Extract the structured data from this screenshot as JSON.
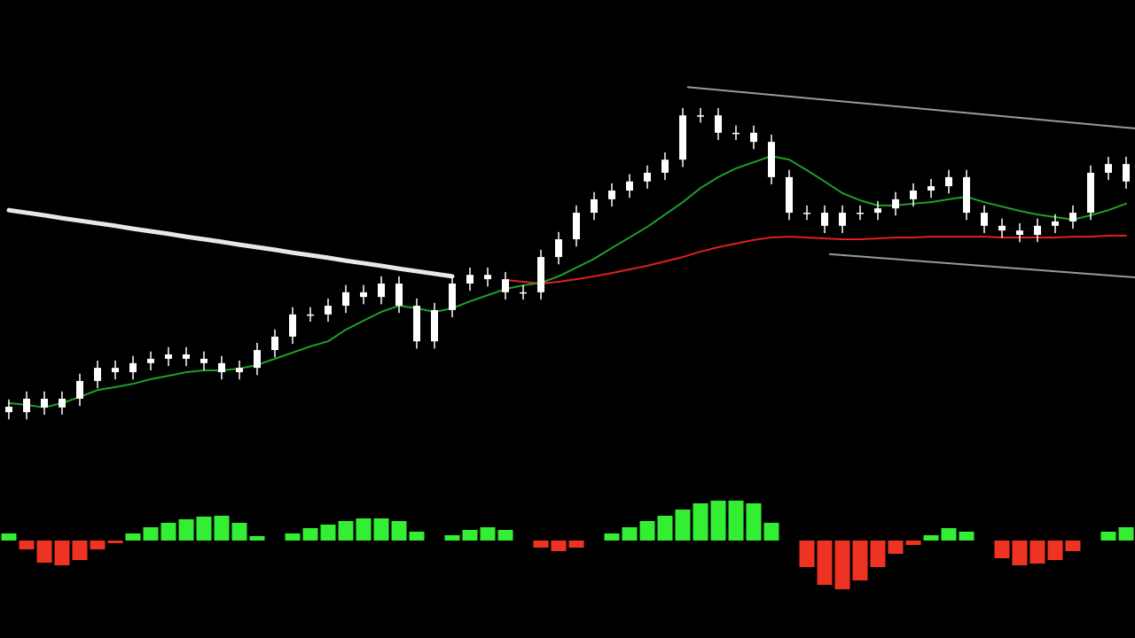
{
  "chart_data": [
    {
      "type": "candlestick",
      "color": "#ffffff",
      "x": [
        0,
        1,
        2,
        3,
        4,
        5,
        6,
        7,
        8,
        9,
        10,
        11,
        12,
        13,
        14,
        15,
        16,
        17,
        18,
        19,
        20,
        21,
        22,
        23,
        24,
        25,
        26,
        27,
        28,
        29,
        30,
        31,
        32,
        33,
        34,
        35,
        36,
        37,
        38,
        39,
        40,
        41,
        42,
        43,
        44,
        45,
        46,
        47,
        48,
        49,
        50,
        51,
        52,
        53,
        54,
        55,
        56,
        57,
        58,
        59,
        60,
        61,
        62,
        63
      ],
      "open": [
        10.0,
        8.5,
        12.2,
        9.8,
        12.2,
        17.1,
        20.7,
        19.5,
        22.0,
        23.2,
        24.4,
        23.2,
        22.0,
        19.5,
        20.7,
        25.6,
        29.3,
        35.4,
        35.4,
        37.8,
        41.5,
        40.2,
        43.9,
        37.8,
        28.0,
        36.6,
        43.9,
        46.3,
        45.1,
        41.5,
        41.5,
        51.2,
        56.1,
        63.4,
        67.1,
        69.5,
        72.0,
        74.4,
        78.0,
        90.2,
        90.2,
        85.4,
        85.4,
        82.9,
        73.2,
        63.4,
        63.4,
        59.8,
        63.4,
        63.4,
        64.6,
        67.1,
        69.5,
        70.7,
        73.2,
        63.4,
        59.8,
        58.5,
        57.3,
        59.8,
        61.0,
        63.4,
        74.4,
        76.8
      ],
      "high": [
        12.0,
        14.2,
        14.2,
        14.2,
        19.1,
        22.7,
        22.7,
        24.0,
        25.2,
        26.4,
        26.4,
        25.2,
        24.0,
        22.7,
        27.6,
        31.3,
        37.4,
        37.4,
        39.8,
        43.5,
        43.5,
        45.9,
        45.9,
        39.8,
        38.6,
        45.9,
        48.3,
        48.3,
        47.1,
        43.5,
        53.2,
        58.1,
        65.4,
        69.1,
        71.5,
        74.0,
        76.4,
        80.0,
        92.2,
        92.2,
        92.2,
        87.4,
        87.4,
        84.9,
        75.2,
        65.4,
        65.4,
        65.4,
        65.4,
        66.6,
        69.1,
        71.5,
        72.7,
        75.2,
        75.2,
        65.4,
        61.8,
        60.5,
        61.8,
        63.0,
        65.4,
        76.4,
        78.8,
        78.8
      ],
      "low": [
        6.5,
        6.5,
        7.8,
        7.8,
        10.2,
        15.1,
        17.5,
        17.5,
        20.0,
        21.2,
        21.2,
        20.0,
        17.5,
        17.5,
        18.7,
        23.6,
        27.3,
        33.4,
        33.4,
        35.8,
        38.2,
        38.2,
        35.8,
        26.0,
        26.0,
        34.6,
        41.9,
        43.1,
        39.5,
        39.5,
        39.5,
        49.2,
        54.1,
        61.4,
        65.1,
        67.5,
        70.0,
        72.4,
        76.0,
        88.2,
        83.4,
        83.4,
        80.9,
        71.2,
        61.4,
        61.4,
        57.8,
        57.8,
        61.4,
        61.4,
        62.6,
        65.1,
        67.5,
        68.7,
        61.4,
        57.8,
        56.5,
        55.3,
        55.3,
        57.8,
        59.0,
        61.4,
        72.4,
        70.0
      ],
      "close": [
        8.5,
        12.2,
        9.8,
        12.2,
        17.1,
        20.7,
        19.5,
        22.0,
        23.2,
        24.4,
        23.2,
        22.0,
        19.5,
        20.7,
        25.6,
        29.3,
        35.4,
        35.4,
        37.8,
        41.5,
        40.2,
        43.9,
        37.8,
        28.0,
        36.6,
        43.9,
        46.3,
        45.1,
        41.5,
        41.5,
        51.2,
        56.1,
        63.4,
        67.1,
        69.5,
        72.0,
        74.4,
        78.0,
        90.2,
        90.2,
        85.4,
        85.4,
        82.9,
        73.2,
        63.4,
        63.4,
        59.8,
        63.4,
        63.4,
        64.6,
        67.1,
        69.5,
        70.7,
        73.2,
        63.4,
        59.8,
        58.5,
        57.3,
        59.8,
        61.0,
        63.4,
        74.4,
        76.8,
        72.0
      ],
      "lines": [
        {
          "color": "#e8e8e8",
          "values": [
            64.1,
            63.4,
            62.7,
            61.9,
            61.2,
            60.5,
            59.8,
            59.0,
            58.3,
            57.6,
            56.8,
            56.1,
            55.4,
            54.6,
            53.9,
            53.2,
            52.4,
            51.7,
            51.0,
            50.2,
            49.5,
            48.8,
            48.0,
            47.3,
            46.6,
            45.9,
            null,
            null,
            null,
            null,
            null,
            null,
            null,
            null,
            null,
            null,
            null,
            null,
            null,
            null,
            null,
            null,
            null,
            null,
            null,
            null,
            null,
            null,
            null,
            null,
            null,
            null,
            null,
            null,
            null,
            null,
            null,
            null,
            null,
            null,
            null,
            null,
            null,
            null
          ]
        },
        {
          "color": "#e02020",
          "values": [
            null,
            null,
            null,
            null,
            null,
            null,
            null,
            null,
            null,
            null,
            null,
            null,
            null,
            null,
            null,
            null,
            null,
            null,
            null,
            null,
            null,
            null,
            null,
            null,
            null,
            null,
            null,
            null,
            44.9,
            44.4,
            43.9,
            44.4,
            45.1,
            45.9,
            46.8,
            47.8,
            48.8,
            50.0,
            51.2,
            52.7,
            53.9,
            54.9,
            55.9,
            56.6,
            56.8,
            56.6,
            56.3,
            56.1,
            56.1,
            56.3,
            56.6,
            56.6,
            56.8,
            56.8,
            56.8,
            56.8,
            56.6,
            56.6,
            56.6,
            56.6,
            56.8,
            56.8,
            57.1,
            57.1
          ]
        },
        {
          "color": "#1fa02a",
          "values": [
            11.0,
            10.5,
            9.8,
            11.0,
            12.7,
            14.6,
            15.4,
            16.3,
            17.6,
            18.5,
            19.5,
            20.0,
            20.0,
            20.5,
            21.5,
            23.2,
            24.9,
            26.6,
            28.0,
            31.2,
            33.7,
            36.1,
            37.8,
            37.1,
            36.1,
            37.1,
            39.0,
            40.7,
            42.4,
            43.4,
            44.1,
            45.9,
            48.3,
            50.7,
            53.7,
            56.6,
            59.5,
            62.9,
            66.3,
            70.2,
            73.2,
            75.6,
            77.3,
            79.0,
            78.0,
            75.1,
            72.0,
            68.8,
            66.8,
            65.4,
            65.4,
            65.9,
            66.3,
            67.1,
            67.8,
            66.3,
            65.1,
            63.9,
            62.9,
            62.2,
            61.5,
            62.7,
            64.1,
            65.9
          ]
        }
      ],
      "trendlines": [
        {
          "color": "#9a9a9a",
          "x": [
            38.25,
            63.5
          ],
          "values": [
            98.0,
            86.6
          ]
        },
        {
          "color": "#9a9a9a",
          "x": [
            46.25,
            63.5
          ],
          "values": [
            52.0,
            45.6
          ]
        }
      ],
      "xlim": [
        -0.5,
        63.5
      ],
      "ylim": [
        0,
        100
      ]
    },
    {
      "type": "histogram_bars",
      "up_color": "#33ee33",
      "down_color": "#ee3322",
      "x": [
        0,
        1,
        2,
        3,
        4,
        5,
        6,
        7,
        8,
        9,
        10,
        11,
        12,
        13,
        14,
        15,
        16,
        17,
        18,
        19,
        20,
        21,
        22,
        23,
        24,
        25,
        26,
        27,
        28,
        29,
        30,
        31,
        32,
        33,
        34,
        35,
        36,
        37,
        38,
        39,
        40,
        41,
        42,
        43,
        44,
        45,
        46,
        47,
        48,
        49,
        50,
        51,
        52,
        53,
        54,
        55,
        56,
        57,
        58,
        59,
        60,
        61,
        62,
        63
      ],
      "values": [
        8,
        -10,
        -25,
        -28,
        -22,
        -10,
        -3,
        8,
        15,
        20,
        24,
        27,
        28,
        20,
        5,
        0,
        8,
        14,
        18,
        22,
        25,
        25,
        22,
        10,
        0,
        6,
        12,
        15,
        12,
        0,
        -8,
        -12,
        -8,
        0,
        8,
        15,
        22,
        28,
        35,
        42,
        45,
        45,
        42,
        20,
        0,
        -30,
        -50,
        -55,
        -45,
        -30,
        -15,
        -5,
        6,
        14,
        10,
        0,
        -20,
        -28,
        -26,
        -22,
        -12,
        0,
        10,
        15
      ],
      "xlim": [
        -0.5,
        63.5
      ],
      "ylim": [
        -60,
        60
      ]
    }
  ]
}
